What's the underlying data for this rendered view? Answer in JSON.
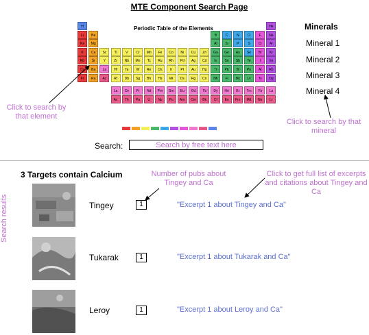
{
  "page_title": "MTE Component Search Page",
  "periodic_table": {
    "title": "Periodic Table of the Elements",
    "elements": [
      {
        "s": "H",
        "r": 0,
        "c": 0,
        "color": "#5a86e8"
      },
      {
        "s": "He",
        "r": 0,
        "c": 17,
        "color": "#b04fe0"
      },
      {
        "s": "Li",
        "r": 1,
        "c": 0,
        "color": "#e83a3a"
      },
      {
        "s": "Be",
        "r": 1,
        "c": 1,
        "color": "#f2a326"
      },
      {
        "s": "B",
        "r": 1,
        "c": 12,
        "color": "#49b86b"
      },
      {
        "s": "C",
        "r": 1,
        "c": 13,
        "color": "#3fa8e8"
      },
      {
        "s": "N",
        "r": 1,
        "c": 14,
        "color": "#3fa8e8"
      },
      {
        "s": "O",
        "r": 1,
        "c": 15,
        "color": "#3fa8e8"
      },
      {
        "s": "F",
        "r": 1,
        "c": 16,
        "color": "#e456d8"
      },
      {
        "s": "Ne",
        "r": 1,
        "c": 17,
        "color": "#b04fe0"
      },
      {
        "s": "Na",
        "r": 2,
        "c": 0,
        "color": "#e83a3a"
      },
      {
        "s": "Mg",
        "r": 2,
        "c": 1,
        "color": "#f2a326"
      },
      {
        "s": "Al",
        "r": 2,
        "c": 12,
        "color": "#49b86b"
      },
      {
        "s": "Si",
        "r": 2,
        "c": 13,
        "color": "#49b86b"
      },
      {
        "s": "P",
        "r": 2,
        "c": 14,
        "color": "#3fa8e8"
      },
      {
        "s": "S",
        "r": 2,
        "c": 15,
        "color": "#3fa8e8"
      },
      {
        "s": "Cl",
        "r": 2,
        "c": 16,
        "color": "#e456d8"
      },
      {
        "s": "Ar",
        "r": 2,
        "c": 17,
        "color": "#b04fe0"
      },
      {
        "s": "K",
        "r": 3,
        "c": 0,
        "color": "#e83a3a"
      },
      {
        "s": "Ca",
        "r": 3,
        "c": 1,
        "color": "#f2a326"
      },
      {
        "s": "Sc",
        "r": 3,
        "c": 2,
        "color": "#f4ef5a"
      },
      {
        "s": "Ti",
        "r": 3,
        "c": 3,
        "color": "#f4ef5a"
      },
      {
        "s": "V",
        "r": 3,
        "c": 4,
        "color": "#f4ef5a"
      },
      {
        "s": "Cr",
        "r": 3,
        "c": 5,
        "color": "#f4ef5a"
      },
      {
        "s": "Mn",
        "r": 3,
        "c": 6,
        "color": "#f4ef5a"
      },
      {
        "s": "Fe",
        "r": 3,
        "c": 7,
        "color": "#f4ef5a"
      },
      {
        "s": "Co",
        "r": 3,
        "c": 8,
        "color": "#f4ef5a"
      },
      {
        "s": "Ni",
        "r": 3,
        "c": 9,
        "color": "#f4ef5a"
      },
      {
        "s": "Cu",
        "r": 3,
        "c": 10,
        "color": "#f4ef5a"
      },
      {
        "s": "Zn",
        "r": 3,
        "c": 11,
        "color": "#f4ef5a"
      },
      {
        "s": "Ga",
        "r": 3,
        "c": 12,
        "color": "#49b86b"
      },
      {
        "s": "Ge",
        "r": 3,
        "c": 13,
        "color": "#49b86b"
      },
      {
        "s": "As",
        "r": 3,
        "c": 14,
        "color": "#49b86b"
      },
      {
        "s": "Se",
        "r": 3,
        "c": 15,
        "color": "#3fa8e8"
      },
      {
        "s": "Br",
        "r": 3,
        "c": 16,
        "color": "#e456d8"
      },
      {
        "s": "Kr",
        "r": 3,
        "c": 17,
        "color": "#b04fe0"
      },
      {
        "s": "Rb",
        "r": 4,
        "c": 0,
        "color": "#e83a3a"
      },
      {
        "s": "Sr",
        "r": 4,
        "c": 1,
        "color": "#f2a326"
      },
      {
        "s": "Y",
        "r": 4,
        "c": 2,
        "color": "#f4ef5a"
      },
      {
        "s": "Zr",
        "r": 4,
        "c": 3,
        "color": "#f4ef5a"
      },
      {
        "s": "Nb",
        "r": 4,
        "c": 4,
        "color": "#f4ef5a"
      },
      {
        "s": "Mo",
        "r": 4,
        "c": 5,
        "color": "#f4ef5a"
      },
      {
        "s": "Tc",
        "r": 4,
        "c": 6,
        "color": "#f4ef5a"
      },
      {
        "s": "Ru",
        "r": 4,
        "c": 7,
        "color": "#f4ef5a"
      },
      {
        "s": "Rh",
        "r": 4,
        "c": 8,
        "color": "#f4ef5a"
      },
      {
        "s": "Pd",
        "r": 4,
        "c": 9,
        "color": "#f4ef5a"
      },
      {
        "s": "Ag",
        "r": 4,
        "c": 10,
        "color": "#f4ef5a"
      },
      {
        "s": "Cd",
        "r": 4,
        "c": 11,
        "color": "#f4ef5a"
      },
      {
        "s": "In",
        "r": 4,
        "c": 12,
        "color": "#49b86b"
      },
      {
        "s": "Sn",
        "r": 4,
        "c": 13,
        "color": "#49b86b"
      },
      {
        "s": "Sb",
        "r": 4,
        "c": 14,
        "color": "#49b86b"
      },
      {
        "s": "Te",
        "r": 4,
        "c": 15,
        "color": "#49b86b"
      },
      {
        "s": "I",
        "r": 4,
        "c": 16,
        "color": "#e456d8"
      },
      {
        "s": "Xe",
        "r": 4,
        "c": 17,
        "color": "#b04fe0"
      },
      {
        "s": "Cs",
        "r": 5,
        "c": 0,
        "color": "#e83a3a"
      },
      {
        "s": "Ba",
        "r": 5,
        "c": 1,
        "color": "#f2a326"
      },
      {
        "s": "La",
        "r": 5,
        "c": 2,
        "color": "#f07ad0"
      },
      {
        "s": "Hf",
        "r": 5,
        "c": 3,
        "color": "#f4ef5a"
      },
      {
        "s": "Ta",
        "r": 5,
        "c": 4,
        "color": "#f4ef5a"
      },
      {
        "s": "W",
        "r": 5,
        "c": 5,
        "color": "#f4ef5a"
      },
      {
        "s": "Re",
        "r": 5,
        "c": 6,
        "color": "#f4ef5a"
      },
      {
        "s": "Os",
        "r": 5,
        "c": 7,
        "color": "#f4ef5a"
      },
      {
        "s": "Ir",
        "r": 5,
        "c": 8,
        "color": "#f4ef5a"
      },
      {
        "s": "Pt",
        "r": 5,
        "c": 9,
        "color": "#f4ef5a"
      },
      {
        "s": "Au",
        "r": 5,
        "c": 10,
        "color": "#f4ef5a"
      },
      {
        "s": "Hg",
        "r": 5,
        "c": 11,
        "color": "#f4ef5a"
      },
      {
        "s": "Tl",
        "r": 5,
        "c": 12,
        "color": "#49b86b"
      },
      {
        "s": "Pb",
        "r": 5,
        "c": 13,
        "color": "#49b86b"
      },
      {
        "s": "Bi",
        "r": 5,
        "c": 14,
        "color": "#49b86b"
      },
      {
        "s": "Po",
        "r": 5,
        "c": 15,
        "color": "#49b86b"
      },
      {
        "s": "At",
        "r": 5,
        "c": 16,
        "color": "#e456d8"
      },
      {
        "s": "Rn",
        "r": 5,
        "c": 17,
        "color": "#b04fe0"
      },
      {
        "s": "Fr",
        "r": 6,
        "c": 0,
        "color": "#e83a3a"
      },
      {
        "s": "Ra",
        "r": 6,
        "c": 1,
        "color": "#f2a326"
      },
      {
        "s": "Ac",
        "r": 6,
        "c": 2,
        "color": "#e85a8a"
      },
      {
        "s": "Rf",
        "r": 6,
        "c": 3,
        "color": "#f4ef5a"
      },
      {
        "s": "Db",
        "r": 6,
        "c": 4,
        "color": "#f4ef5a"
      },
      {
        "s": "Sg",
        "r": 6,
        "c": 5,
        "color": "#f4ef5a"
      },
      {
        "s": "Bh",
        "r": 6,
        "c": 6,
        "color": "#f4ef5a"
      },
      {
        "s": "Hs",
        "r": 6,
        "c": 7,
        "color": "#f4ef5a"
      },
      {
        "s": "Mt",
        "r": 6,
        "c": 8,
        "color": "#f4ef5a"
      },
      {
        "s": "Ds",
        "r": 6,
        "c": 9,
        "color": "#f4ef5a"
      },
      {
        "s": "Rg",
        "r": 6,
        "c": 10,
        "color": "#f4ef5a"
      },
      {
        "s": "Cn",
        "r": 6,
        "c": 11,
        "color": "#f4ef5a"
      },
      {
        "s": "Nh",
        "r": 6,
        "c": 12,
        "color": "#49b86b"
      },
      {
        "s": "Fl",
        "r": 6,
        "c": 13,
        "color": "#49b86b"
      },
      {
        "s": "Mc",
        "r": 6,
        "c": 14,
        "color": "#49b86b"
      },
      {
        "s": "Lv",
        "r": 6,
        "c": 15,
        "color": "#49b86b"
      },
      {
        "s": "Ts",
        "r": 6,
        "c": 16,
        "color": "#e456d8"
      },
      {
        "s": "Og",
        "r": 6,
        "c": 17,
        "color": "#b04fe0"
      },
      {
        "s": "La",
        "r": 7,
        "c": 3,
        "color": "#f07ad0"
      },
      {
        "s": "Ce",
        "r": 7,
        "c": 4,
        "color": "#f07ad0"
      },
      {
        "s": "Pr",
        "r": 7,
        "c": 5,
        "color": "#f07ad0"
      },
      {
        "s": "Nd",
        "r": 7,
        "c": 6,
        "color": "#f07ad0"
      },
      {
        "s": "Pm",
        "r": 7,
        "c": 7,
        "color": "#f07ad0"
      },
      {
        "s": "Sm",
        "r": 7,
        "c": 8,
        "color": "#f07ad0"
      },
      {
        "s": "Eu",
        "r": 7,
        "c": 9,
        "color": "#f07ad0"
      },
      {
        "s": "Gd",
        "r": 7,
        "c": 10,
        "color": "#f07ad0"
      },
      {
        "s": "Tb",
        "r": 7,
        "c": 11,
        "color": "#f07ad0"
      },
      {
        "s": "Dy",
        "r": 7,
        "c": 12,
        "color": "#f07ad0"
      },
      {
        "s": "Ho",
        "r": 7,
        "c": 13,
        "color": "#f07ad0"
      },
      {
        "s": "Er",
        "r": 7,
        "c": 14,
        "color": "#f07ad0"
      },
      {
        "s": "Tm",
        "r": 7,
        "c": 15,
        "color": "#f07ad0"
      },
      {
        "s": "Yb",
        "r": 7,
        "c": 16,
        "color": "#f07ad0"
      },
      {
        "s": "Lu",
        "r": 7,
        "c": 17,
        "color": "#f07ad0"
      },
      {
        "s": "Ac",
        "r": 8,
        "c": 3,
        "color": "#e85a8a"
      },
      {
        "s": "Th",
        "r": 8,
        "c": 4,
        "color": "#e85a8a"
      },
      {
        "s": "Pa",
        "r": 8,
        "c": 5,
        "color": "#e85a8a"
      },
      {
        "s": "U",
        "r": 8,
        "c": 6,
        "color": "#e85a8a"
      },
      {
        "s": "Np",
        "r": 8,
        "c": 7,
        "color": "#e85a8a"
      },
      {
        "s": "Pu",
        "r": 8,
        "c": 8,
        "color": "#e85a8a"
      },
      {
        "s": "Am",
        "r": 8,
        "c": 9,
        "color": "#e85a8a"
      },
      {
        "s": "Cm",
        "r": 8,
        "c": 10,
        "color": "#e85a8a"
      },
      {
        "s": "Bk",
        "r": 8,
        "c": 11,
        "color": "#e85a8a"
      },
      {
        "s": "Cf",
        "r": 8,
        "c": 12,
        "color": "#e85a8a"
      },
      {
        "s": "Es",
        "r": 8,
        "c": 13,
        "color": "#e85a8a"
      },
      {
        "s": "Fm",
        "r": 8,
        "c": 14,
        "color": "#e85a8a"
      },
      {
        "s": "Md",
        "r": 8,
        "c": 15,
        "color": "#e85a8a"
      },
      {
        "s": "No",
        "r": 8,
        "c": 16,
        "color": "#e85a8a"
      },
      {
        "s": "Lr",
        "r": 8,
        "c": 17,
        "color": "#e85a8a"
      }
    ],
    "legend_colors": [
      "#e83a3a",
      "#f2a326",
      "#f4ef5a",
      "#49b86b",
      "#3fa8e8",
      "#b04fe0",
      "#e456d8",
      "#f07ad0",
      "#e85a8a",
      "#5a86e8"
    ]
  },
  "minerals": {
    "heading": "Minerals",
    "items": [
      "Mineral 1",
      "Mineral 2",
      "Mineral 3",
      "Mineral 4"
    ]
  },
  "annotations": {
    "click_element": "Click to search by that element",
    "click_mineral": "Click to search by that mineral",
    "num_pubs": "Number of pubs about Tingey and Ca",
    "full_list": "Click to get full list of excerpts and citations about Tingey and Ca",
    "search_results": "Search results"
  },
  "search": {
    "label": "Search:",
    "placeholder": "Search by free text here"
  },
  "results": {
    "heading": "3 Targets contain Calcium",
    "targets": [
      {
        "name": "Tingey",
        "count": "1",
        "excerpt": "\"Excerpt 1 about Tingey and Ca\""
      },
      {
        "name": "Tukarak",
        "count": "1",
        "excerpt": "\"Excerpt 1 about Tukarak and Ca\""
      },
      {
        "name": "Leroy",
        "count": "1",
        "excerpt": "\"Excerpt 1 about Leroy and Ca\""
      }
    ]
  }
}
